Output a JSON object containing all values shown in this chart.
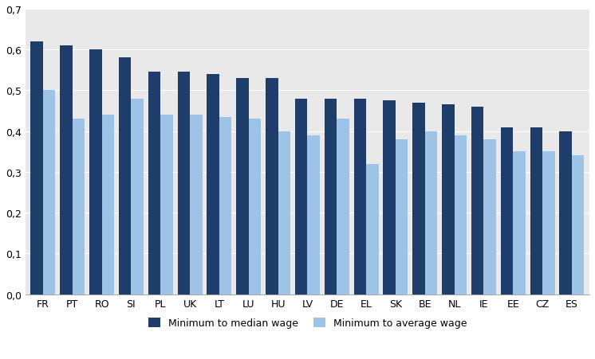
{
  "categories": [
    "FR",
    "PT",
    "RO",
    "SI",
    "PL",
    "UK",
    "LT",
    "LU",
    "HU",
    "LV",
    "DE",
    "EL",
    "SK",
    "BE",
    "NL",
    "IE",
    "EE",
    "CZ",
    "ES"
  ],
  "median_values": [
    0.62,
    0.61,
    0.6,
    0.58,
    0.545,
    0.545,
    0.54,
    0.53,
    0.53,
    0.48,
    0.48,
    0.48,
    0.475,
    0.47,
    0.465,
    0.46,
    0.41,
    0.41,
    0.4
  ],
  "average_values": [
    0.5,
    0.43,
    0.44,
    0.48,
    0.44,
    0.44,
    0.435,
    0.43,
    0.4,
    0.39,
    0.43,
    0.32,
    0.38,
    0.4,
    0.39,
    0.38,
    0.35,
    0.35,
    0.34
  ],
  "median_color": "#1F3D6B",
  "average_color": "#9DC3E6",
  "legend_median": "Minimum to median wage",
  "legend_average": "Minimum to average wage",
  "ylim": [
    0,
    0.7
  ],
  "yticks": [
    0.0,
    0.1,
    0.2,
    0.3,
    0.4,
    0.5,
    0.6,
    0.7
  ],
  "ytick_labels": [
    "0,0",
    "0,1",
    "0,2",
    "0,3",
    "0,4",
    "0,5",
    "0,6",
    "0,7"
  ],
  "background_color": "#FFFFFF",
  "plot_bg_color": "#E9E9E9",
  "grid_color": "#FFFFFF",
  "bar_width": 0.42,
  "figsize": [
    7.46,
    4.52
  ],
  "dpi": 100
}
